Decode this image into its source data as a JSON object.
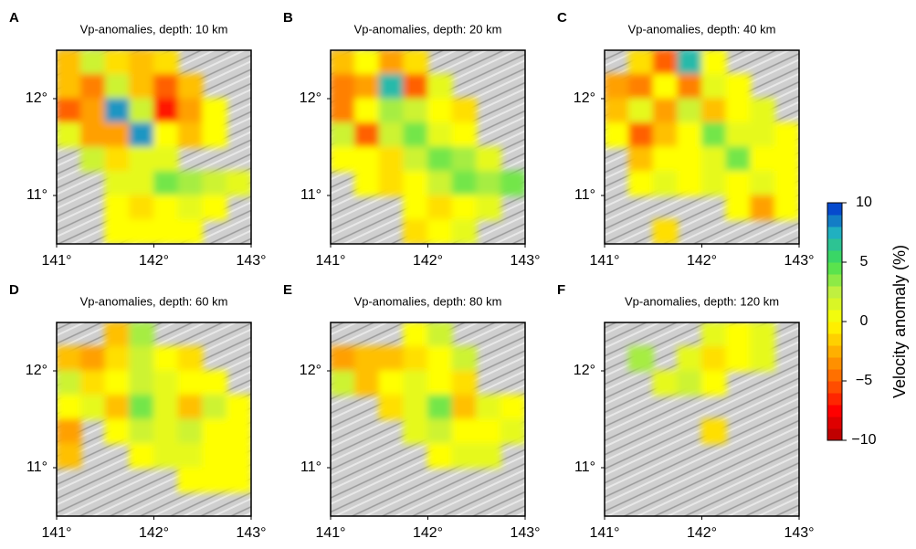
{
  "chart_data": [
    {
      "type": "heatmap",
      "panel_label": "A",
      "title": "Vp-anomalies, depth: 10 km",
      "xlim": [
        141,
        143
      ],
      "ylim": [
        10.5,
        12.5
      ],
      "xticks": [
        {
          "value": 141,
          "label": "141°"
        },
        {
          "value": 142,
          "label": "142°"
        },
        {
          "value": 143,
          "label": "143°"
        }
      ],
      "yticks": [
        {
          "value": 11,
          "label": "11°"
        },
        {
          "value": 12,
          "label": "12°"
        }
      ],
      "z": [
        [
          -2,
          2,
          -1,
          -2,
          -1,
          null,
          null,
          null
        ],
        [
          -2,
          -4,
          2,
          -2,
          -5,
          -2,
          null,
          null
        ],
        [
          -5,
          -3,
          8,
          2,
          -7,
          -3,
          0,
          null
        ],
        [
          1,
          -3,
          -3,
          8,
          0,
          -2,
          0,
          null
        ],
        [
          null,
          2,
          -1,
          1,
          1,
          null,
          null,
          null
        ],
        [
          null,
          null,
          1,
          1,
          4,
          3,
          2,
          1
        ],
        [
          null,
          null,
          0,
          -1,
          0,
          1,
          0,
          null
        ],
        [
          null,
          null,
          0,
          0,
          0,
          0,
          null,
          null
        ]
      ]
    },
    {
      "type": "heatmap",
      "panel_label": "B",
      "title": "Vp-anomalies, depth: 20 km",
      "xlim": [
        141,
        143
      ],
      "ylim": [
        10.5,
        12.5
      ],
      "xticks": [
        {
          "value": 141,
          "label": "141°"
        },
        {
          "value": 142,
          "label": "142°"
        },
        {
          "value": 143,
          "label": "143°"
        }
      ],
      "yticks": [
        {
          "value": 11,
          "label": "11°"
        },
        {
          "value": 12,
          "label": "12°"
        }
      ],
      "z": [
        [
          -2,
          0,
          -3,
          -1,
          null,
          null,
          null,
          null
        ],
        [
          -4,
          -3,
          7,
          -5,
          1,
          null,
          null,
          null
        ],
        [
          -4,
          0,
          3,
          2,
          0,
          -1,
          null,
          null
        ],
        [
          2,
          -5,
          2,
          4,
          1,
          0,
          null,
          null
        ],
        [
          0,
          0,
          -1,
          2,
          4,
          3,
          1,
          null
        ],
        [
          null,
          0,
          -1,
          0,
          2,
          4,
          3,
          4
        ],
        [
          null,
          null,
          null,
          0,
          -1,
          0,
          1,
          null
        ],
        [
          null,
          null,
          null,
          -1,
          0,
          1,
          null,
          null
        ]
      ]
    },
    {
      "type": "heatmap",
      "panel_label": "C",
      "title": "Vp-anomalies, depth: 40 km",
      "xlim": [
        141,
        143
      ],
      "ylim": [
        10.5,
        12.5
      ],
      "xticks": [
        {
          "value": 141,
          "label": "141°"
        },
        {
          "value": 142,
          "label": "142°"
        },
        {
          "value": 143,
          "label": "143°"
        }
      ],
      "yticks": [
        {
          "value": 11,
          "label": "11°"
        },
        {
          "value": 12,
          "label": "12°"
        }
      ],
      "z": [
        [
          null,
          -1,
          -5,
          7,
          0,
          null,
          null,
          null
        ],
        [
          -3,
          -4,
          0,
          -4,
          1,
          0,
          null,
          null
        ],
        [
          -2,
          1,
          -3,
          2,
          -2,
          0,
          1,
          null
        ],
        [
          0,
          -5,
          -2,
          0,
          4,
          1,
          1,
          0
        ],
        [
          null,
          -2,
          0,
          0,
          1,
          4,
          0,
          0
        ],
        [
          null,
          0,
          1,
          0,
          1,
          0,
          1,
          0
        ],
        [
          null,
          null,
          null,
          null,
          null,
          0,
          -3,
          0
        ],
        [
          null,
          null,
          -1,
          null,
          null,
          null,
          null,
          null
        ]
      ]
    },
    {
      "type": "heatmap",
      "panel_label": "D",
      "title": "Vp-anomalies, depth: 60 km",
      "xlim": [
        141,
        143
      ],
      "ylim": [
        10.5,
        12.5
      ],
      "xticks": [
        {
          "value": 141,
          "label": "141°"
        },
        {
          "value": 142,
          "label": "142°"
        },
        {
          "value": 143,
          "label": "143°"
        }
      ],
      "yticks": [
        {
          "value": 11,
          "label": "11°"
        },
        {
          "value": 12,
          "label": "12°"
        }
      ],
      "z": [
        [
          null,
          null,
          -2,
          3,
          null,
          null,
          null,
          null
        ],
        [
          -2,
          -3,
          -1,
          2,
          0,
          -1,
          null,
          null
        ],
        [
          2,
          -1,
          0,
          2,
          1,
          0,
          0,
          null
        ],
        [
          0,
          1,
          -2,
          4,
          1,
          -2,
          2,
          0
        ],
        [
          -3,
          null,
          0,
          2,
          1,
          2,
          0,
          0
        ],
        [
          -2,
          null,
          null,
          0,
          1,
          1,
          0,
          0
        ],
        [
          null,
          null,
          null,
          null,
          null,
          0,
          0,
          0
        ],
        [
          null,
          null,
          null,
          null,
          null,
          null,
          null,
          null
        ]
      ]
    },
    {
      "type": "heatmap",
      "panel_label": "E",
      "title": "Vp-anomalies, depth: 80 km",
      "xlim": [
        141,
        143
      ],
      "ylim": [
        10.5,
        12.5
      ],
      "xticks": [
        {
          "value": 141,
          "label": "141°"
        },
        {
          "value": 142,
          "label": "142°"
        },
        {
          "value": 143,
          "label": "143°"
        }
      ],
      "yticks": [
        {
          "value": 11,
          "label": "11°"
        },
        {
          "value": 12,
          "label": "12°"
        }
      ],
      "z": [
        [
          null,
          null,
          null,
          0,
          2,
          null,
          null,
          null
        ],
        [
          -3,
          -2,
          -2,
          -1,
          0,
          2,
          null,
          null
        ],
        [
          2,
          -2,
          0,
          1,
          0,
          -1,
          null,
          null
        ],
        [
          null,
          null,
          -1,
          1,
          4,
          -2,
          1,
          0
        ],
        [
          null,
          null,
          null,
          1,
          2,
          0,
          0,
          1
        ],
        [
          null,
          null,
          null,
          null,
          0,
          1,
          1,
          null
        ],
        [
          null,
          null,
          null,
          null,
          null,
          null,
          null,
          null
        ],
        [
          null,
          null,
          null,
          null,
          null,
          null,
          null,
          null
        ]
      ]
    },
    {
      "type": "heatmap",
      "panel_label": "F",
      "title": "Vp-anomalies, depth: 120 km",
      "xlim": [
        141,
        143
      ],
      "ylim": [
        10.5,
        12.5
      ],
      "xticks": [
        {
          "value": 141,
          "label": "141°"
        },
        {
          "value": 142,
          "label": "142°"
        },
        {
          "value": 143,
          "label": "143°"
        }
      ],
      "yticks": [
        {
          "value": 11,
          "label": "11°"
        },
        {
          "value": 12,
          "label": "12°"
        }
      ],
      "z": [
        [
          null,
          null,
          null,
          null,
          1,
          0,
          1,
          null
        ],
        [
          null,
          3,
          null,
          1,
          -1,
          0,
          1,
          null
        ],
        [
          null,
          null,
          1,
          2,
          0,
          null,
          null,
          null
        ],
        [
          null,
          null,
          null,
          null,
          null,
          null,
          null,
          null
        ],
        [
          null,
          null,
          null,
          null,
          -1,
          null,
          null,
          null
        ],
        [
          null,
          null,
          null,
          null,
          null,
          null,
          null,
          null
        ],
        [
          null,
          null,
          null,
          null,
          null,
          null,
          null,
          null
        ],
        [
          null,
          null,
          null,
          null,
          null,
          null,
          null,
          null
        ]
      ]
    }
  ],
  "colorbar": {
    "label": "Velocity anomaly (%)",
    "clim": [
      -10,
      10
    ],
    "ticks": [
      {
        "value": -10,
        "label": "−10"
      },
      {
        "value": -5,
        "label": "−5"
      },
      0,
      5,
      10
    ],
    "colors": [
      "#b00000",
      "#ff0000",
      "#ff6000",
      "#ffb000",
      "#ffff00",
      "#c0f040",
      "#40e050",
      "#20b0c0",
      "#0030d0"
    ]
  }
}
